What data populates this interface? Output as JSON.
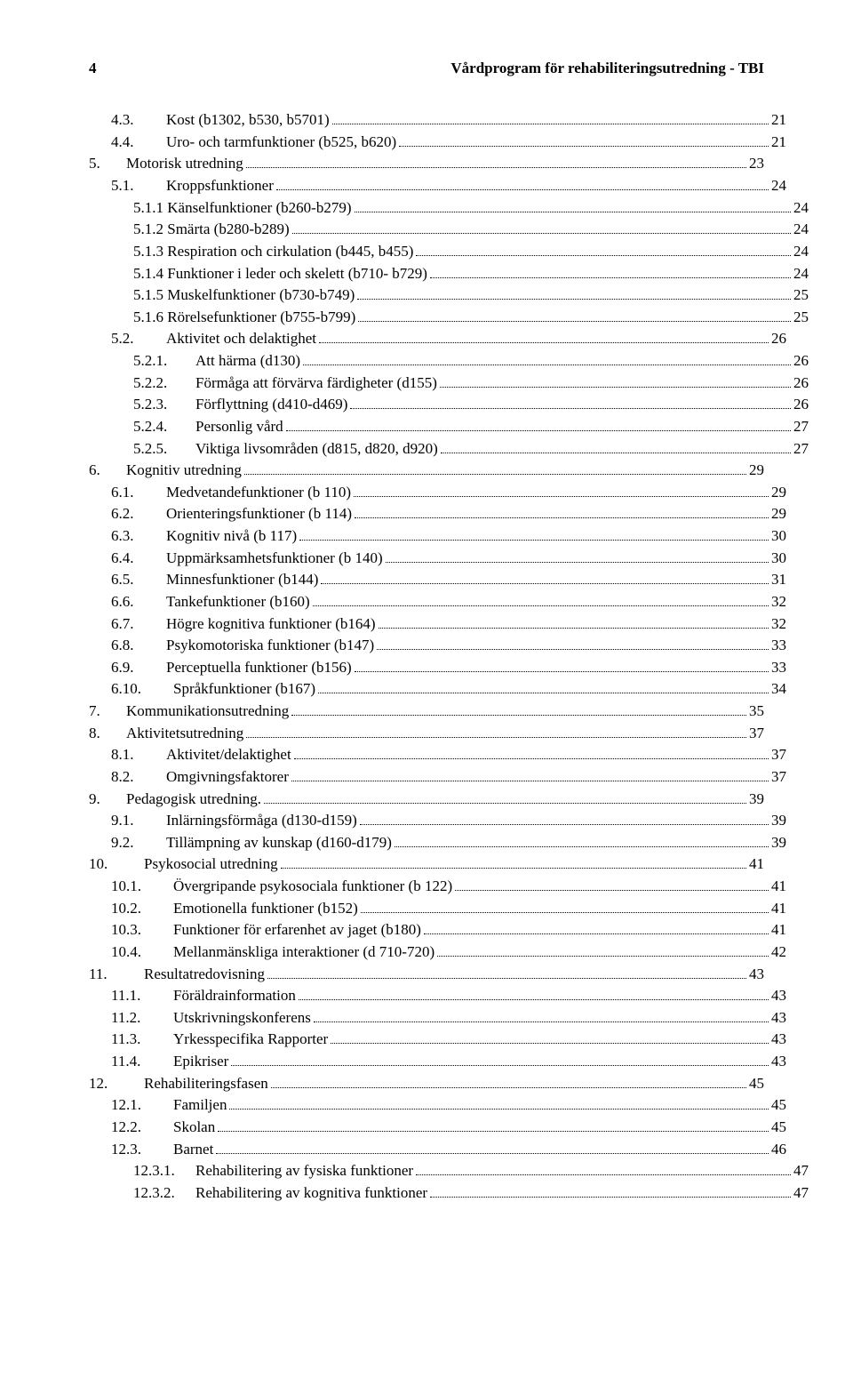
{
  "header": {
    "page_number": "4",
    "title": "Vårdprogram för rehabiliteringsutredning - TBI"
  },
  "toc": [
    {
      "indent": 1,
      "num": "4.3.",
      "numcls": "num-col-med",
      "title": "Kost (b1302, b530, b5701)",
      "page": "21"
    },
    {
      "indent": 1,
      "num": "4.4.",
      "numcls": "num-col-med",
      "title": "Uro- och tarmfunktioner (b525, b620)",
      "page": "21"
    },
    {
      "indent": 0,
      "num": "5.",
      "numcls": "num-col-narrow",
      "title": "Motorisk utredning",
      "page": "23"
    },
    {
      "indent": 1,
      "num": "5.1.",
      "numcls": "num-col-med",
      "title": "Kroppsfunktioner",
      "page": "24"
    },
    {
      "indent": 2,
      "num": "",
      "numcls": "",
      "title": "5.1.1 Känselfunktioner (b260-b279)",
      "page": "24"
    },
    {
      "indent": 2,
      "num": "",
      "numcls": "",
      "title": "5.1.2 Smärta (b280-b289)",
      "page": "24"
    },
    {
      "indent": 2,
      "num": "",
      "numcls": "",
      "title": "5.1.3 Respiration och cirkulation (b445, b455)",
      "page": "24"
    },
    {
      "indent": 2,
      "num": "",
      "numcls": "",
      "title": "5.1.4 Funktioner i leder och skelett (b710- b729)",
      "page": "24"
    },
    {
      "indent": 2,
      "num": "",
      "numcls": "",
      "title": "5.1.5 Muskelfunktioner (b730-b749)",
      "page": "25"
    },
    {
      "indent": 2,
      "num": "",
      "numcls": "",
      "title": "5.1.6 Rörelsefunktioner (b755-b799)",
      "page": "25"
    },
    {
      "indent": 1,
      "num": "5.2.",
      "numcls": "num-col-med",
      "title": "Aktivitet och delaktighet",
      "page": "26"
    },
    {
      "indent": 2,
      "num": "5.2.1.",
      "numcls": "num-col-wide",
      "title": "Att härma (d130)",
      "page": "26"
    },
    {
      "indent": 2,
      "num": "5.2.2.",
      "numcls": "num-col-wide",
      "title": "Förmåga att förvärva färdigheter (d155)",
      "page": "26"
    },
    {
      "indent": 2,
      "num": "5.2.3.",
      "numcls": "num-col-wide",
      "title": "Förflyttning (d410-d469)",
      "page": "26"
    },
    {
      "indent": 2,
      "num": "5.2.4.",
      "numcls": "num-col-wide",
      "title": "Personlig vård",
      "page": "27"
    },
    {
      "indent": 2,
      "num": "5.2.5.",
      "numcls": "num-col-wide",
      "title": "Viktiga livsområden (d815, d820, d920)",
      "page": "27"
    },
    {
      "indent": 0,
      "num": "6.",
      "numcls": "num-col-narrow",
      "title": "Kognitiv utredning",
      "page": "29"
    },
    {
      "indent": 1,
      "num": "6.1.",
      "numcls": "num-col-med",
      "title": "Medvetandefunktioner (b 110)",
      "page": "29"
    },
    {
      "indent": 1,
      "num": "6.2.",
      "numcls": "num-col-med",
      "title": "Orienteringsfunktioner (b 114)",
      "page": "29"
    },
    {
      "indent": 1,
      "num": "6.3.",
      "numcls": "num-col-med",
      "title": "Kognitiv nivå (b 117)",
      "page": "30"
    },
    {
      "indent": 1,
      "num": "6.4.",
      "numcls": "num-col-med",
      "title": "Uppmärksamhetsfunktioner (b 140)",
      "page": "30"
    },
    {
      "indent": 1,
      "num": "6.5.",
      "numcls": "num-col-med",
      "title": "Minnesfunktioner (b144)",
      "page": "31"
    },
    {
      "indent": 1,
      "num": "6.6.",
      "numcls": "num-col-med",
      "title": "Tankefunktioner (b160)",
      "page": "32"
    },
    {
      "indent": 1,
      "num": "6.7.",
      "numcls": "num-col-med",
      "title": "Högre kognitiva funktioner (b164)",
      "page": "32"
    },
    {
      "indent": 1,
      "num": "6.8.",
      "numcls": "num-col-med",
      "title": "Psykomotoriska funktioner (b147)",
      "page": "33"
    },
    {
      "indent": 1,
      "num": "6.9.",
      "numcls": "num-col-med",
      "title": "Perceptuella funktioner (b156)",
      "page": "33"
    },
    {
      "indent": 1,
      "num": "6.10.",
      "numcls": "num-col-wide",
      "title": "Språkfunktioner (b167)",
      "page": "34"
    },
    {
      "indent": 0,
      "num": "7.",
      "numcls": "num-col-narrow",
      "title": "Kommunikationsutredning",
      "page": "35"
    },
    {
      "indent": 0,
      "num": "8.",
      "numcls": "num-col-narrow",
      "title": "Aktivitetsutredning",
      "page": "37"
    },
    {
      "indent": 1,
      "num": "8.1.",
      "numcls": "num-col-med",
      "title": "Aktivitet/delaktighet",
      "page": "37"
    },
    {
      "indent": 1,
      "num": "8.2.",
      "numcls": "num-col-med",
      "title": "Omgivningsfaktorer",
      "page": "37"
    },
    {
      "indent": 0,
      "num": "9.",
      "numcls": "num-col-narrow",
      "title": "Pedagogisk utredning.",
      "page": "39"
    },
    {
      "indent": 1,
      "num": "9.1.",
      "numcls": "num-col-med",
      "title": "Inlärningsförmåga (d130-d159)",
      "page": "39"
    },
    {
      "indent": 1,
      "num": "9.2.",
      "numcls": "num-col-med",
      "title": "Tillämpning av kunskap (d160-d179)",
      "page": "39"
    },
    {
      "indent": 0,
      "num": "10.",
      "numcls": "num-col-med",
      "title": "Psykosocial utredning",
      "page": "41"
    },
    {
      "indent": 1,
      "num": "10.1.",
      "numcls": "num-col-wide",
      "title": "Övergripande psykosociala funktioner (b 122)",
      "page": "41"
    },
    {
      "indent": 1,
      "num": "10.2.",
      "numcls": "num-col-wide",
      "title": "Emotionella funktioner (b152)",
      "page": "41"
    },
    {
      "indent": 1,
      "num": "10.3.",
      "numcls": "num-col-wide",
      "title": "Funktioner för erfarenhet av jaget (b180)",
      "page": "41"
    },
    {
      "indent": 1,
      "num": "10.4.",
      "numcls": "num-col-wide",
      "title": "Mellanmänskliga interaktioner (d 710-720)",
      "page": "42"
    },
    {
      "indent": 0,
      "num": "11.",
      "numcls": "num-col-med",
      "title": "Resultatredovisning",
      "page": "43"
    },
    {
      "indent": 1,
      "num": "11.1.",
      "numcls": "num-col-wide",
      "title": "Föräldrainformation",
      "page": "43"
    },
    {
      "indent": 1,
      "num": "11.2.",
      "numcls": "num-col-wide",
      "title": "Utskrivningskonferens",
      "page": "43"
    },
    {
      "indent": 1,
      "num": "11.3.",
      "numcls": "num-col-wide",
      "title": "Yrkesspecifika Rapporter",
      "page": "43"
    },
    {
      "indent": 1,
      "num": "11.4.",
      "numcls": "num-col-wide",
      "title": "Epikriser",
      "page": "43"
    },
    {
      "indent": 0,
      "num": "12.",
      "numcls": "num-col-med",
      "title": "Rehabiliteringsfasen",
      "page": "45"
    },
    {
      "indent": 1,
      "num": "12.1.",
      "numcls": "num-col-wide",
      "title": "Familjen",
      "page": "45"
    },
    {
      "indent": 1,
      "num": "12.2.",
      "numcls": "num-col-wide",
      "title": "Skolan",
      "page": "45"
    },
    {
      "indent": 1,
      "num": "12.3.",
      "numcls": "num-col-wide",
      "title": "Barnet",
      "page": "46"
    },
    {
      "indent": 2,
      "num": "12.3.1.",
      "numcls": "num-col-wide",
      "title": "Rehabilitering av fysiska funktioner",
      "page": "47"
    },
    {
      "indent": 2,
      "num": "12.3.2.",
      "numcls": "num-col-wide",
      "title": "Rehabilitering av kognitiva funktioner",
      "page": "47"
    }
  ]
}
